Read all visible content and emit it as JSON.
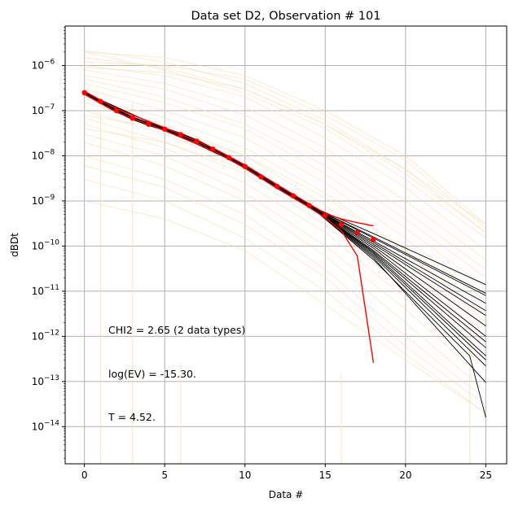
{
  "chart_data": {
    "type": "line",
    "title": "Data set D2, Observation # 101",
    "xlabel": "Data #",
    "ylabel": "dBDt",
    "xlim": [
      -1.2,
      26.3
    ],
    "ylim": [
      1.5e-15,
      7.5e-06
    ],
    "yscale": "log",
    "grid": true,
    "xticks": [
      0,
      5,
      10,
      15,
      20,
      25
    ],
    "xtick_labels": [
      "0",
      "5",
      "10",
      "15",
      "20",
      "25"
    ],
    "yticks": [
      1e-06,
      1e-07,
      1e-08,
      1e-09,
      1e-10,
      1e-11,
      1e-12,
      1e-13,
      1e-14
    ],
    "ytick_labels": [
      {
        "base": "10",
        "exp": "−6"
      },
      {
        "base": "10",
        "exp": "−7"
      },
      {
        "base": "10",
        "exp": "−8"
      },
      {
        "base": "10",
        "exp": "−9"
      },
      {
        "base": "10",
        "exp": "−10"
      },
      {
        "base": "10",
        "exp": "−11"
      },
      {
        "base": "10",
        "exp": "−12"
      },
      {
        "base": "10",
        "exp": "−13"
      },
      {
        "base": "10",
        "exp": "−14"
      }
    ],
    "annotations": [
      "CHI2 = 2.65 (2 data types)",
      "log(EV) = -15.30.",
      "T = 4.52."
    ],
    "colors": {
      "prior": "#f5deb3",
      "posterior": "#000000",
      "observed": "#ff0000",
      "grid": "#b0b0b0"
    },
    "prior_series": [
      {
        "x": [
          0,
          5,
          10,
          15,
          20,
          25
        ],
        "y": [
          2.2e-06,
          1.2e-06,
          4e-07,
          6e-08,
          5e-09,
          3e-10
        ]
      },
      {
        "x": [
          0,
          5,
          10,
          15,
          20,
          25
        ],
        "y": [
          2e-06,
          8e-07,
          2.5e-07,
          4e-08,
          3e-09,
          1.5e-10
        ]
      },
      {
        "x": [
          0,
          5,
          10,
          15,
          20,
          25
        ],
        "y": [
          1.5e-06,
          9e-07,
          3e-07,
          5e-08,
          4e-09,
          2e-10
        ]
      },
      {
        "x": [
          0,
          5,
          10,
          15,
          20,
          25
        ],
        "y": [
          1e-06,
          6e-07,
          2e-07,
          2.5e-08,
          2e-09,
          8e-11
        ]
      },
      {
        "x": [
          0,
          5,
          10,
          15,
          20,
          25
        ],
        "y": [
          8e-07,
          4e-07,
          1.2e-07,
          1.5e-08,
          1e-09,
          5e-11
        ]
      },
      {
        "x": [
          0,
          5,
          10,
          15,
          20,
          25
        ],
        "y": [
          6e-07,
          3e-07,
          8e-08,
          1e-08,
          6e-10,
          3e-11
        ]
      },
      {
        "x": [
          0,
          5,
          10,
          15,
          20,
          25
        ],
        "y": [
          5e-07,
          2e-07,
          5e-08,
          6e-09,
          4e-10,
          2e-11
        ]
      },
      {
        "x": [
          0,
          5,
          10,
          15,
          20,
          25
        ],
        "y": [
          4e-07,
          1.5e-07,
          4e-08,
          4e-09,
          2.5e-10,
          1.2e-11
        ]
      },
      {
        "x": [
          0,
          5,
          10,
          15,
          20,
          25
        ],
        "y": [
          3e-07,
          1e-07,
          2.5e-08,
          2.5e-09,
          1.5e-10,
          6e-12
        ]
      },
      {
        "x": [
          0,
          5,
          10,
          15,
          20,
          25
        ],
        "y": [
          2e-07,
          7e-08,
          1.5e-08,
          1.5e-09,
          8e-11,
          3e-12
        ]
      },
      {
        "x": [
          0,
          5,
          10,
          15,
          20,
          25
        ],
        "y": [
          1.5e-07,
          5e-08,
          1e-08,
          8e-10,
          4e-11,
          1.5e-12
        ]
      },
      {
        "x": [
          0,
          5,
          10,
          15,
          20,
          25
        ],
        "y": [
          1e-07,
          3e-08,
          6e-09,
          5e-10,
          2e-11,
          7e-13
        ]
      },
      {
        "x": [
          0,
          5,
          10,
          15,
          20,
          25
        ],
        "y": [
          7e-08,
          2e-08,
          4e-09,
          3e-10,
          1.2e-11,
          4e-13
        ]
      },
      {
        "x": [
          0,
          5,
          10,
          15,
          20,
          25
        ],
        "y": [
          5e-08,
          1.5e-08,
          2.5e-09,
          2e-10,
          7e-12,
          2e-13
        ]
      },
      {
        "x": [
          0,
          5,
          10,
          15,
          20,
          25
        ],
        "y": [
          3e-08,
          1e-08,
          1.5e-09,
          1e-10,
          4e-12,
          1e-13
        ]
      },
      {
        "x": [
          0,
          5,
          10,
          15,
          20,
          25
        ],
        "y": [
          2e-08,
          6e-09,
          1e-09,
          6e-11,
          2e-12,
          6e-14
        ]
      },
      {
        "x": [
          0,
          5,
          10,
          15,
          20,
          25
        ],
        "y": [
          1e-08,
          3e-09,
          5e-10,
          3e-11,
          1e-12,
          4e-14
        ]
      },
      {
        "x": [
          0,
          5,
          10,
          15,
          20,
          25
        ],
        "y": [
          6e-09,
          2e-09,
          3e-10,
          2e-11,
          6e-13,
          3e-14
        ]
      },
      {
        "x": [
          0,
          5,
          10,
          15,
          20,
          25
        ],
        "y": [
          3e-09,
          1e-09,
          1.5e-10,
          1e-11,
          4e-13,
          2e-14
        ]
      },
      {
        "x": [
          0,
          5,
          10,
          15,
          20,
          25
        ],
        "y": [
          1.2e-06,
          1e-06,
          5e-07,
          8e-08,
          8e-09,
          2.5e-10
        ]
      },
      {
        "x": [
          0,
          5,
          10,
          15,
          20,
          25
        ],
        "y": [
          9e-07,
          7e-07,
          3e-07,
          5e-08,
          5e-09,
          2e-10
        ]
      },
      {
        "x": [
          0,
          5,
          10,
          15,
          20,
          25
        ],
        "y": [
          4e-08,
          2e-08,
          5e-09,
          5e-10,
          3e-11,
          1e-12
        ]
      },
      {
        "x": [
          0,
          5,
          10,
          15,
          20,
          25
        ],
        "y": [
          1e-09,
          4e-10,
          8e-11,
          5e-12,
          3e-13,
          2e-14
        ]
      },
      {
        "x": [
          0,
          5,
          10,
          15,
          20,
          25
        ],
        "y": [
          2e-06,
          1.5e-06,
          6e-07,
          1e-07,
          1e-08,
          3e-10
        ]
      },
      {
        "x": [
          0,
          5,
          10,
          15,
          20,
          25
        ],
        "y": [
          8e-08,
          4e-08,
          1e-08,
          1.2e-09,
          8e-11,
          2e-12
        ]
      }
    ],
    "prior_spikes": [
      {
        "x": 1,
        "top": 1e-07
      },
      {
        "x": 3,
        "top": 1.5e-07
      },
      {
        "x": 6,
        "top": 2.5e-13
      },
      {
        "x": 16,
        "top": 1.5e-13
      },
      {
        "x": 24,
        "top": 1e-12
      }
    ],
    "posterior_series": [
      {
        "x": [
          0,
          5,
          10,
          14,
          18,
          25
        ],
        "y": [
          2.5e-07,
          3.9e-08,
          5.8e-09,
          7.9e-10,
          1.9e-10,
          1.4e-11
        ]
      },
      {
        "x": [
          0,
          5,
          10,
          14,
          18,
          25
        ],
        "y": [
          2.5e-07,
          3.9e-08,
          5.8e-09,
          7.9e-10,
          1.6e-10,
          9e-12
        ]
      },
      {
        "x": [
          0,
          5,
          10,
          14,
          18,
          25
        ],
        "y": [
          2.5e-07,
          3.9e-08,
          5.8e-09,
          7.9e-10,
          1.5e-10,
          8e-12
        ]
      },
      {
        "x": [
          0,
          5,
          10,
          14,
          18,
          25
        ],
        "y": [
          2.5e-07,
          3.9e-08,
          5.8e-09,
          7.9e-10,
          1.3e-10,
          5.4e-12
        ]
      },
      {
        "x": [
          0,
          5,
          10,
          14,
          18,
          25
        ],
        "y": [
          2.5e-07,
          3.9e-08,
          5.8e-09,
          7.9e-10,
          1.2e-10,
          3.7e-12
        ]
      },
      {
        "x": [
          0,
          5,
          10,
          14,
          18,
          25
        ],
        "y": [
          2.5e-07,
          3.9e-08,
          5.8e-09,
          7.9e-10,
          1.1e-10,
          2.9e-12
        ]
      },
      {
        "x": [
          0,
          5,
          10,
          14,
          18,
          25
        ],
        "y": [
          2.5e-07,
          3.9e-08,
          5.8e-09,
          7.9e-10,
          1e-10,
          1.7e-12
        ]
      },
      {
        "x": [
          0,
          5,
          10,
          14,
          18,
          25
        ],
        "y": [
          2.5e-07,
          3.9e-08,
          5.8e-09,
          7.9e-10,
          9e-11,
          1e-12
        ]
      },
      {
        "x": [
          0,
          5,
          10,
          14,
          18,
          25
        ],
        "y": [
          2.5e-07,
          3.9e-08,
          5.8e-09,
          7.9e-10,
          8e-11,
          7.6e-13
        ]
      },
      {
        "x": [
          0,
          5,
          10,
          14,
          18,
          25
        ],
        "y": [
          2.5e-07,
          3.9e-08,
          5.8e-09,
          7.9e-10,
          7.5e-11,
          5.6e-13
        ]
      },
      {
        "x": [
          0,
          5,
          10,
          14,
          18,
          25
        ],
        "y": [
          2.5e-07,
          3.9e-08,
          5.8e-09,
          7.9e-10,
          7e-11,
          3.7e-13
        ]
      },
      {
        "x": [
          0,
          5,
          10,
          14,
          18,
          25
        ],
        "y": [
          2.5e-07,
          3.9e-08,
          5.8e-09,
          7.9e-10,
          6.5e-11,
          3e-13
        ]
      },
      {
        "x": [
          0,
          5,
          10,
          14,
          18,
          25
        ],
        "y": [
          2.5e-07,
          3.9e-08,
          5.8e-09,
          7.9e-10,
          6e-11,
          2.2e-13
        ]
      },
      {
        "x": [
          0,
          5,
          10,
          14,
          18,
          25
        ],
        "y": [
          2.5e-07,
          3.9e-08,
          5.8e-09,
          7.9e-10,
          5.5e-11,
          9.5e-14
        ]
      },
      {
        "x": [
          0,
          5,
          10,
          14,
          18,
          24,
          25
        ],
        "y": [
          2.5e-07,
          3.9e-08,
          5.8e-09,
          7.9e-10,
          5e-11,
          3.7e-13,
          1.6e-14
        ]
      }
    ],
    "observed_points": {
      "x": [
        0,
        1,
        2,
        3,
        4,
        5,
        6,
        7,
        8,
        9,
        10,
        11,
        12,
        13,
        14,
        15,
        16,
        17,
        18
      ],
      "y": [
        2.5e-07,
        1.6e-07,
        1e-07,
        6.8e-08,
        5e-08,
        3.9e-08,
        2.95e-08,
        2.1e-08,
        1.4e-08,
        9.1e-09,
        5.8e-09,
        3.4e-09,
        2.1e-09,
        1.3e-09,
        7.9e-10,
        4.8e-10,
        3e-10,
        2e-10,
        1.4e-10
      ]
    },
    "observed_bounds": [
      {
        "x": [
          0,
          2,
          5,
          8,
          10,
          12,
          14,
          15,
          16,
          17,
          18
        ],
        "y": [
          2.7e-07,
          1.1e-07,
          4.2e-08,
          1.5e-08,
          6.3e-09,
          2.3e-09,
          8.6e-10,
          5.3e-10,
          4e-10,
          3.3e-10,
          2.8e-10
        ]
      },
      {
        "x": [
          0,
          2,
          5,
          8,
          10,
          12,
          14,
          15,
          16,
          17,
          18
        ],
        "y": [
          2.3e-07,
          9.2e-08,
          3.6e-08,
          1.3e-08,
          5.3e-09,
          1.9e-09,
          7.2e-10,
          4.2e-10,
          2.2e-10,
          6e-11,
          2.6e-13
        ]
      }
    ]
  }
}
